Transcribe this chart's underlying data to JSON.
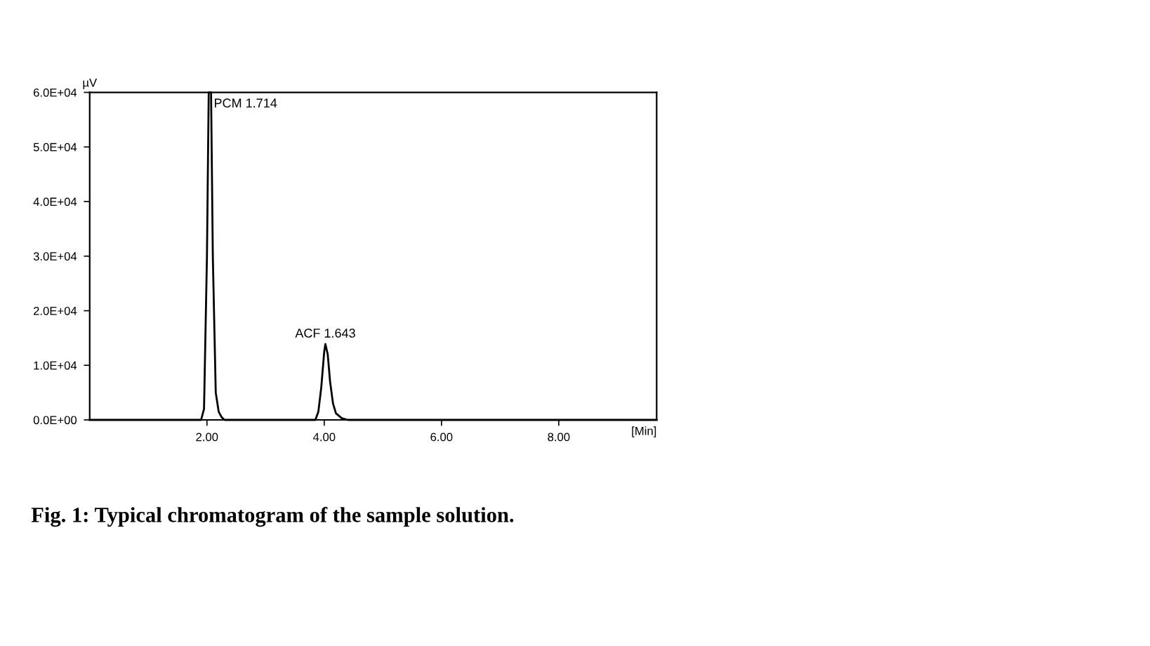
{
  "chart_data": {
    "type": "line",
    "ylabel": "µV",
    "xlabel": "[Min]",
    "x": [
      0.0,
      1.5,
      1.9,
      1.95,
      2.0,
      2.03,
      2.07,
      2.1,
      2.15,
      2.2,
      2.25,
      2.3,
      3.85,
      3.9,
      3.95,
      4.0,
      4.02,
      4.06,
      4.1,
      4.15,
      4.2,
      4.3,
      4.4,
      9.67
    ],
    "values": [
      0,
      0,
      0,
      2000,
      30000,
      60000,
      60000,
      30000,
      5000,
      1500,
      500,
      0,
      0,
      1500,
      6000,
      12500,
      13900,
      12000,
      7000,
      3000,
      1200,
      300,
      0,
      0
    ],
    "color": "#000000",
    "xlim": [
      0,
      9.67
    ],
    "ylim": [
      0,
      60000
    ],
    "xticks": [
      {
        "value": 2,
        "label": "2.00"
      },
      {
        "value": 4,
        "label": "4.00"
      },
      {
        "value": 6,
        "label": "6.00"
      },
      {
        "value": 8,
        "label": "8.00"
      }
    ],
    "yticks": [
      {
        "value": 0,
        "label": "0.0E+00"
      },
      {
        "value": 10000,
        "label": "1.0E+04"
      },
      {
        "value": 20000,
        "label": "2.0E+04"
      },
      {
        "value": 30000,
        "label": "3.0E+04"
      },
      {
        "value": 40000,
        "label": "4.0E+04"
      },
      {
        "value": 50000,
        "label": "5.0E+04"
      },
      {
        "value": 60000,
        "label": "6.0E+04"
      }
    ],
    "annotations": [
      {
        "text": "PCM 1.714",
        "x": 2.05,
        "y": 60000
      },
      {
        "text": "ACF 1.643",
        "x": 4.02,
        "y": 13900
      },
      "Fig. 1: Typical chromatogram of the sample solution."
    ],
    "grid": false,
    "legend": false,
    "marker": "none",
    "line_style": "solid"
  }
}
